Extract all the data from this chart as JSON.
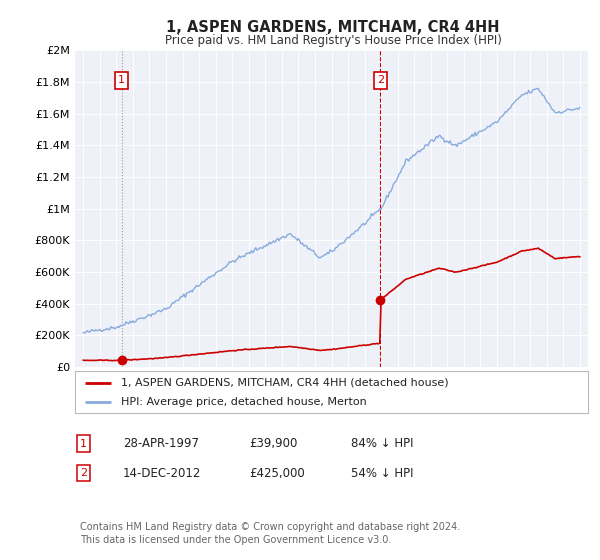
{
  "title": "1, ASPEN GARDENS, MITCHAM, CR4 4HH",
  "subtitle": "Price paid vs. HM Land Registry's House Price Index (HPI)",
  "legend_line1": "1, ASPEN GARDENS, MITCHAM, CR4 4HH (detached house)",
  "legend_line2": "HPI: Average price, detached house, Merton",
  "annotation1_date": "28-APR-1997",
  "annotation1_price": "£39,900",
  "annotation1_hpi": "84% ↓ HPI",
  "annotation2_date": "14-DEC-2012",
  "annotation2_price": "£425,000",
  "annotation2_hpi": "54% ↓ HPI",
  "footnote": "Contains HM Land Registry data © Crown copyright and database right 2024.\nThis data is licensed under the Open Government Licence v3.0.",
  "vline1_x": 1997.32,
  "vline2_x": 2012.96,
  "dot1_y": 39900,
  "dot2_y": 425000,
  "red_color": "#cc0000",
  "blue_color": "#88aadd",
  "vline1_color": "#999999",
  "vline2_color": "#cc0000",
  "background_color": "#eef2f8",
  "ylim": [
    0,
    2000000
  ],
  "xlim": [
    1994.5,
    2025.5
  ]
}
